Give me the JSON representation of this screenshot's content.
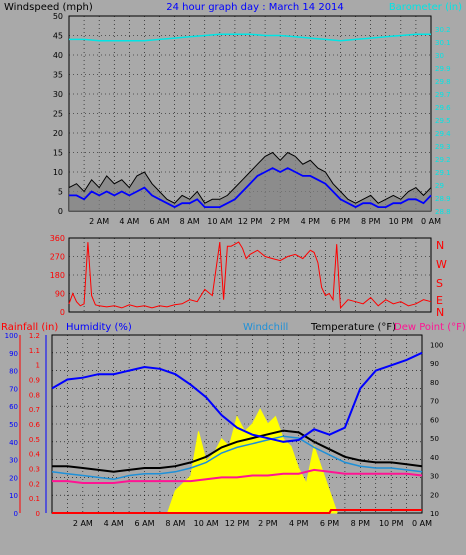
{
  "header": {
    "windspeed_label": "Windspeed (mph)",
    "title": "24 hour graph day : March 14 2014",
    "barometer_label": "Barometer (in)"
  },
  "compass_labels": [
    "N",
    "W",
    "S",
    "E",
    "N"
  ],
  "bottom_labels": {
    "rainfall": "Rainfall (in)",
    "humidity": "Humidity (%)",
    "windchill": "Windchill",
    "temperature": "Temperature (°F)",
    "dewpoint": "Dew Point (°F)"
  },
  "colors": {
    "background": "#a9a9a9",
    "wind_speed": "#0000ff",
    "wind_gust": "#000000",
    "barometer": "#00e5e5",
    "wind_direction": "#ff0000",
    "humidity": "#0000ff",
    "windchill": "#1e90d8",
    "temperature": "#000000",
    "dewpoint": "#ff1493",
    "solar": "#ffff00",
    "rainfall": "#ff0000"
  },
  "chart_data": [
    {
      "type": "line",
      "title": "24 hour graph day : March 14 2014",
      "ylabel": "Windspeed (mph)",
      "y2label": "Barometer (in)",
      "x_ticks": [
        "2 AM",
        "4 AM",
        "6 AM",
        "8 AM",
        "10 AM",
        "12 PM",
        "2 PM",
        "4 PM",
        "6 PM",
        "8 PM",
        "10 PM",
        "0 AM"
      ],
      "xlim": [
        0,
        24
      ],
      "ylim": [
        0,
        50
      ],
      "y_ticks": [
        "0",
        "5",
        "10",
        "15",
        "20",
        "25",
        "30",
        "35",
        "40",
        "45",
        "50"
      ],
      "y2lim": [
        28.8,
        30.3
      ],
      "y2_ticks": [
        "28.8",
        "28.9",
        "29",
        "29.1",
        "29.2",
        "29.3",
        "29.4",
        "29.5",
        "29.6",
        "29.7",
        "29.8",
        "29.9",
        "30",
        "30.1",
        "30.2"
      ],
      "series": [
        {
          "name": "Wind Gust",
          "x": [
            0,
            0.5,
            1,
            1.5,
            2,
            2.5,
            3,
            3.5,
            4,
            4.5,
            5,
            5.5,
            6,
            6.5,
            7,
            7.5,
            8,
            8.5,
            9,
            9.5,
            10,
            10.5,
            11,
            11.5,
            12,
            12.5,
            13,
            13.5,
            14,
            14.5,
            15,
            15.5,
            16,
            16.5,
            17,
            17.5,
            18,
            18.5,
            19,
            19.5,
            20,
            20.5,
            21,
            21.5,
            22,
            22.5,
            23,
            23.5,
            24
          ],
          "values": [
            6,
            7,
            5,
            8,
            6,
            9,
            7,
            8,
            6,
            9,
            10,
            7,
            5,
            3,
            2,
            4,
            3,
            5,
            2,
            3,
            3,
            4,
            6,
            8,
            10,
            12,
            14,
            15,
            13,
            15,
            14,
            12,
            13,
            11,
            10,
            7,
            5,
            3,
            2,
            3,
            4,
            2,
            3,
            4,
            3,
            5,
            6,
            4,
            6
          ]
        },
        {
          "name": "Wind Speed",
          "x": [
            0,
            0.5,
            1,
            1.5,
            2,
            2.5,
            3,
            3.5,
            4,
            4.5,
            5,
            5.5,
            6,
            6.5,
            7,
            7.5,
            8,
            8.5,
            9,
            9.5,
            10,
            10.5,
            11,
            11.5,
            12,
            12.5,
            13,
            13.5,
            14,
            14.5,
            15,
            15.5,
            16,
            16.5,
            17,
            17.5,
            18,
            18.5,
            19,
            19.5,
            20,
            20.5,
            21,
            21.5,
            22,
            22.5,
            23,
            23.5,
            24
          ],
          "values": [
            4,
            4,
            3,
            5,
            4,
            5,
            4,
            5,
            4,
            5,
            6,
            4,
            3,
            2,
            1,
            2,
            2,
            3,
            1,
            1,
            1,
            2,
            3,
            5,
            7,
            9,
            10,
            11,
            10,
            11,
            10,
            9,
            9,
            8,
            7,
            5,
            3,
            2,
            1,
            2,
            2,
            1,
            1,
            2,
            2,
            3,
            3,
            2,
            4
          ]
        },
        {
          "name": "Barometer",
          "x": [
            0,
            1,
            2,
            3,
            4,
            5,
            6,
            7,
            8,
            9,
            10,
            11,
            12,
            13,
            14,
            15,
            16,
            17,
            18,
            19,
            20,
            21,
            22,
            23,
            24
          ],
          "values": [
            30.12,
            30.12,
            30.11,
            30.11,
            30.11,
            30.11,
            30.12,
            30.13,
            30.14,
            30.15,
            30.16,
            30.16,
            30.16,
            30.15,
            30.15,
            30.14,
            30.13,
            30.12,
            30.11,
            30.12,
            30.13,
            30.14,
            30.15,
            30.16,
            30.16
          ]
        }
      ]
    },
    {
      "type": "scatter",
      "ylabel": "Wind direction",
      "ylim": [
        0,
        360
      ],
      "y_ticks": [
        "0",
        "90",
        "180",
        "270",
        "360"
      ],
      "series": [
        {
          "name": "Wind Direction",
          "x": [
            0,
            0.25,
            0.5,
            0.75,
            1,
            1.25,
            1.5,
            1.75,
            2,
            2.5,
            3,
            3.5,
            4,
            4.5,
            5,
            5.5,
            6,
            6.5,
            7,
            7.5,
            8,
            8.5,
            9,
            9.5,
            10,
            10.25,
            10.5,
            10.75,
            11,
            11.25,
            11.5,
            11.75,
            12,
            12.5,
            13,
            13.5,
            14,
            14.5,
            15,
            15.5,
            16,
            16.25,
            16.5,
            16.75,
            17,
            17.25,
            17.5,
            17.75,
            18,
            18.25,
            18.5,
            19,
            19.5,
            20,
            20.5,
            21,
            21.5,
            22,
            22.5,
            23,
            23.5,
            24
          ],
          "values": [
            40,
            90,
            50,
            30,
            40,
            340,
            80,
            35,
            30,
            25,
            30,
            20,
            35,
            25,
            30,
            20,
            30,
            25,
            35,
            40,
            60,
            50,
            110,
            80,
            340,
            60,
            320,
            320,
            330,
            340,
            310,
            260,
            280,
            300,
            270,
            260,
            250,
            270,
            280,
            260,
            300,
            290,
            240,
            120,
            80,
            90,
            60,
            330,
            20,
            40,
            60,
            50,
            40,
            70,
            30,
            60,
            40,
            50,
            30,
            40,
            60,
            50
          ]
        }
      ]
    },
    {
      "type": "line",
      "ylabel": "Temperature (°F)",
      "y_ticks": [
        "10",
        "20",
        "30",
        "40",
        "50",
        "60",
        "70",
        "80",
        "90",
        "100"
      ],
      "ylim": [
        10,
        105
      ],
      "humidity_ticks": [
        "0",
        "10",
        "20",
        "30",
        "40",
        "50",
        "60",
        "70",
        "80",
        "90",
        "100"
      ],
      "humidity_lim": [
        0,
        100
      ],
      "rain_ticks": [
        "0",
        "0.1",
        "0.2",
        "0.3",
        "0.4",
        "0.5",
        "0.6",
        "0.7",
        "0.8",
        "0.9",
        "1",
        "1.1",
        "1.2"
      ],
      "rain_lim": [
        0,
        1.2
      ],
      "series": [
        {
          "name": "Humidity",
          "x": [
            0,
            1,
            2,
            3,
            4,
            5,
            6,
            7,
            8,
            9,
            10,
            11,
            12,
            13,
            14,
            15,
            16,
            17,
            18,
            19,
            20,
            21,
            22,
            23,
            24
          ],
          "values": [
            70,
            75,
            76,
            78,
            78,
            80,
            82,
            81,
            78,
            72,
            65,
            55,
            48,
            44,
            42,
            40,
            41,
            47,
            44,
            48,
            70,
            80,
            83,
            86,
            90
          ]
        },
        {
          "name": "Temperature",
          "x": [
            0,
            1,
            2,
            3,
            4,
            5,
            6,
            7,
            8,
            9,
            10,
            11,
            12,
            13,
            14,
            15,
            16,
            17,
            18,
            19,
            20,
            21,
            22,
            23,
            24
          ],
          "values": [
            35,
            35,
            34,
            33,
            32,
            33,
            34,
            34,
            35,
            37,
            40,
            45,
            48,
            50,
            52,
            54,
            53,
            48,
            44,
            40,
            38,
            37,
            37,
            36,
            35
          ]
        },
        {
          "name": "Windchill",
          "x": [
            0,
            1,
            2,
            3,
            4,
            5,
            6,
            7,
            8,
            9,
            10,
            11,
            12,
            13,
            14,
            15,
            16,
            17,
            18,
            19,
            20,
            21,
            22,
            23,
            24
          ],
          "values": [
            32,
            31,
            30,
            29,
            28,
            30,
            31,
            31,
            32,
            34,
            37,
            42,
            45,
            47,
            49,
            51,
            50,
            45,
            41,
            37,
            35,
            34,
            34,
            33,
            32
          ]
        },
        {
          "name": "Dew Point",
          "x": [
            0,
            1,
            2,
            3,
            4,
            5,
            6,
            7,
            8,
            9,
            10,
            11,
            12,
            13,
            14,
            15,
            16,
            17,
            18,
            19,
            20,
            21,
            22,
            23,
            24
          ],
          "values": [
            27,
            27,
            26,
            26,
            26,
            27,
            27,
            27,
            27,
            27,
            28,
            29,
            29,
            30,
            30,
            31,
            31,
            33,
            32,
            31,
            31,
            31,
            31,
            31,
            30
          ]
        },
        {
          "name": "Solar",
          "x": [
            7.5,
            8,
            9,
            9.5,
            10,
            10.5,
            11,
            11.5,
            12,
            12.5,
            13,
            13.5,
            14,
            14.5,
            15,
            15.5,
            16,
            16.5,
            17,
            17.5,
            18,
            18.5
          ],
          "values": [
            0,
            0.15,
            0.25,
            0.55,
            0.35,
            0.4,
            0.5,
            0.45,
            0.65,
            0.55,
            0.6,
            0.7,
            0.6,
            0.65,
            0.5,
            0.45,
            0.3,
            0.2,
            0.45,
            0.3,
            0.15,
            0
          ]
        },
        {
          "name": "Rainfall",
          "x": [
            0,
            18,
            18.1,
            24
          ],
          "values": [
            0,
            0,
            0.02,
            0.02
          ]
        }
      ]
    }
  ]
}
